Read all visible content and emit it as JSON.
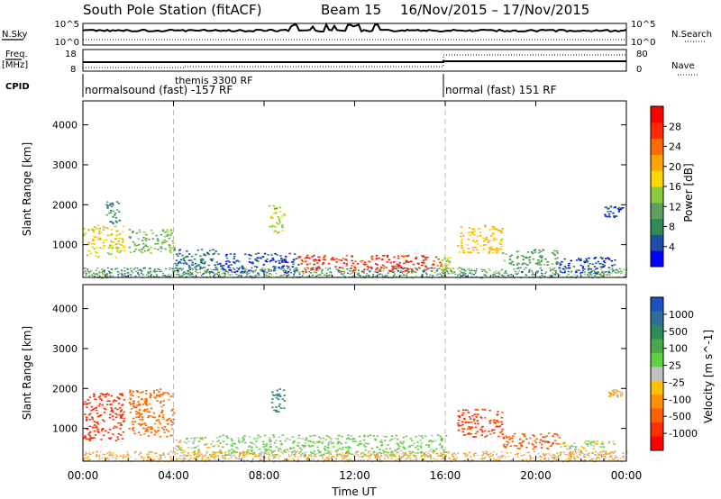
{
  "title": {
    "station": "South Pole Station (fitACF)",
    "beam": "Beam 15",
    "dates": "16/Nov/2015 – 17/Nov/2015"
  },
  "header": {
    "nsky_label": "N.Sky",
    "nsky_ticks": [
      "10^5",
      "10^0"
    ],
    "nsearch_label": "N.Search",
    "nsearch_ticks": [
      "10^5",
      "10^0"
    ],
    "freq_label": "Freq.",
    "freq_unit": "[MHz]",
    "freq_ticks": [
      "18",
      "8"
    ],
    "nave_label": "Nave",
    "nave_ticks": [
      "80",
      "0"
    ],
    "cpid_label": "CPID",
    "cpid_segments": [
      {
        "name": "normalsound (fast) -157 RF",
        "start_hour": 0,
        "end_hour": 16
      },
      {
        "name": "themis 3300 RF",
        "start_hour": 4,
        "end_hour": 4
      },
      {
        "name": "normal (fast) 151 RF",
        "start_hour": 16,
        "end_hour": 24
      }
    ]
  },
  "colorbars": {
    "power": {
      "label": "Power [dB]",
      "ticks": [
        "28",
        "24",
        "20",
        "16",
        "12",
        "8",
        "4"
      ],
      "colors": [
        "#0000ff",
        "#1e4ea8",
        "#2e8b57",
        "#5fa05f",
        "#8ccc3c",
        "#ffd700",
        "#ffa500",
        "#ff6a00",
        "#ff2a00",
        "#ff0000"
      ]
    },
    "velocity": {
      "label": "Velocity [m s^-1]",
      "ticks": [
        "1000",
        "500",
        "100",
        "25",
        "-25",
        "-100",
        "-500",
        "-1000"
      ],
      "colors": [
        "#2050c0",
        "#2e6f9e",
        "#2e8b57",
        "#4aa84a",
        "#5fd040",
        "#c0c0c0",
        "#ffc000",
        "#ff9000",
        "#ff6000",
        "#ff3000",
        "#ff0000"
      ]
    }
  },
  "chart_data": [
    {
      "type": "heatmap",
      "panel": "power",
      "ylabel": "Slant Range [km]",
      "x_ticks": [
        "00:00",
        "04:00",
        "08:00",
        "12:00",
        "16:00",
        "20:00",
        "00:00"
      ],
      "y_ticks": [
        "1000",
        "2000",
        "3000",
        "4000"
      ],
      "xlim_hours": [
        0,
        24
      ],
      "ylim_km": [
        180,
        4600
      ],
      "regions": [
        {
          "t0": 0.0,
          "t1": 1.8,
          "r0": 700,
          "r1": 1500,
          "value": 18
        },
        {
          "t0": 1.0,
          "t1": 1.6,
          "r0": 1500,
          "r1": 2100,
          "value": 10
        },
        {
          "t0": 2.0,
          "t1": 4.0,
          "r0": 800,
          "r1": 1400,
          "value": 14
        },
        {
          "t0": 4.0,
          "t1": 6.0,
          "r0": 300,
          "r1": 900,
          "value": 8
        },
        {
          "t0": 6.0,
          "t1": 9.5,
          "r0": 300,
          "r1": 800,
          "value": 6
        },
        {
          "t0": 8.2,
          "t1": 8.9,
          "r0": 1300,
          "r1": 2000,
          "value": 16
        },
        {
          "t0": 9.5,
          "t1": 15.8,
          "r0": 330,
          "r1": 750,
          "value": 28
        },
        {
          "t0": 15.8,
          "t1": 16.2,
          "r0": 350,
          "r1": 700,
          "value": 16
        },
        {
          "t0": 16.5,
          "t1": 18.5,
          "r0": 800,
          "r1": 1500,
          "value": 20
        },
        {
          "t0": 18.5,
          "t1": 21.0,
          "r0": 500,
          "r1": 900,
          "value": 12
        },
        {
          "t0": 21.0,
          "t1": 23.5,
          "r0": 300,
          "r1": 700,
          "value": 6
        },
        {
          "t0": 23.0,
          "t1": 23.8,
          "r0": 1700,
          "r1": 2000,
          "value": 6
        }
      ]
    },
    {
      "type": "heatmap",
      "panel": "velocity",
      "ylabel": "Slant Range [km]",
      "x_ticks": [
        "00:00",
        "04:00",
        "08:00",
        "12:00",
        "16:00",
        "20:00",
        "00:00"
      ],
      "xlabel": "Time UT",
      "y_ticks": [
        "1000",
        "2000",
        "3000",
        "4000"
      ],
      "xlim_hours": [
        0,
        24
      ],
      "ylim_km": [
        180,
        4600
      ],
      "regions": [
        {
          "t0": 0.0,
          "t1": 1.8,
          "r0": 700,
          "r1": 1900,
          "value": -400
        },
        {
          "t0": 2.0,
          "t1": 4.0,
          "r0": 800,
          "r1": 2000,
          "value": -150
        },
        {
          "t0": 4.0,
          "t1": 6.0,
          "r0": 300,
          "r1": 800,
          "value": 60
        },
        {
          "t0": 6.0,
          "t1": 16.0,
          "r0": 330,
          "r1": 850,
          "value": 150
        },
        {
          "t0": 8.3,
          "t1": 8.9,
          "r0": 1400,
          "r1": 2000,
          "value": 700
        },
        {
          "t0": 16.5,
          "t1": 18.5,
          "r0": 800,
          "r1": 1500,
          "value": -300
        },
        {
          "t0": 18.5,
          "t1": 21.0,
          "r0": 500,
          "r1": 900,
          "value": -200
        },
        {
          "t0": 21.0,
          "t1": 23.5,
          "r0": 300,
          "r1": 700,
          "value": 50
        },
        {
          "t0": 23.2,
          "t1": 23.8,
          "r0": 1800,
          "r1": 2000,
          "value": 0
        }
      ]
    }
  ]
}
